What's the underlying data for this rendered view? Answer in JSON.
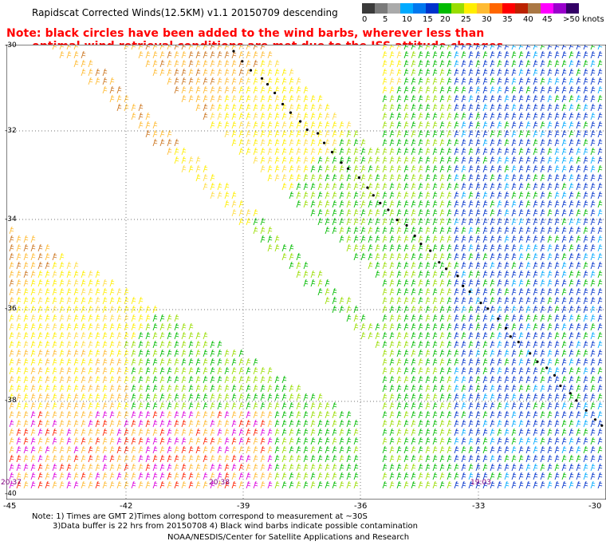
{
  "title": "Rapidscat Corrected Winds(12.5KM) v1.1 20150709 descending",
  "note": {
    "line1": "Note: black circles have been added to the wind barbs, wherever less than",
    "line2": "optimal wind retrieval conditions are met due to the ISS attitude changes."
  },
  "legend": {
    "colors": [
      "#3a3a3a",
      "#7a7a7a",
      "#aaaaaa",
      "#00aaff",
      "#0077ee",
      "#0033cc",
      "#00bb00",
      "#99dd00",
      "#ffee00",
      "#ffbb33",
      "#ff6600",
      "#ff0000",
      "#bb2200",
      "#aa7744",
      "#ff00ff",
      "#9900cc",
      "#330066"
    ],
    "labels": [
      "0",
      "5",
      "10",
      "15",
      "20",
      "25",
      "30",
      "35",
      "40",
      "45",
      ">50 knots"
    ]
  },
  "axes": {
    "y_ticks": [
      "-30",
      "-32",
      "-34",
      "-36",
      "-38",
      "-40"
    ],
    "x_ticks": [
      "-45",
      "-42",
      "-39",
      "-36",
      "-33",
      "-30"
    ]
  },
  "times": [
    "20:37",
    "20:38",
    "19:03"
  ],
  "footer": {
    "line1": "Note: 1) Times are GMT 2)Times along bottom correspond to measurement at ~30S",
    "line2": "3)Data buffer is 22 hrs from 20150708 4) Black wind barbs indicate possible contamination",
    "line3": "NOAA/NESDIS/Center for Satellite Applications and Research"
  }
}
